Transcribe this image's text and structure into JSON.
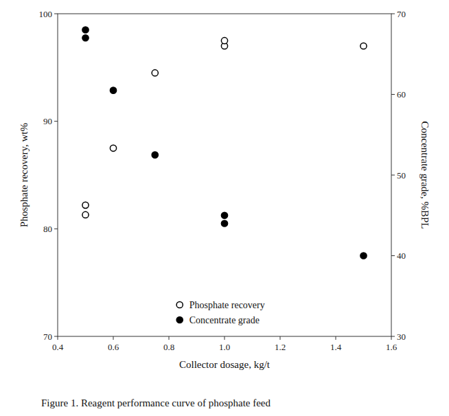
{
  "chart_data": {
    "type": "scatter",
    "caption": "Figure 1. Reagent performance curve of phosphate feed",
    "xlabel": "Collector dosage, kg/t",
    "ylabel": "Phosphate recovery, wt%",
    "y2label": "Concentrate grade, %BPL",
    "x": [
      0.5,
      0.5,
      0.6,
      0.75,
      1.0,
      1.0,
      1.5
    ],
    "series": [
      {
        "name": "Phosphate recovery",
        "color": "black",
        "marker": "open-circle",
        "values": [
          82.2,
          81.3,
          87.5,
          94.5,
          97.0,
          97.5,
          97.0
        ]
      },
      {
        "name": "Concentrate grade",
        "color": "black",
        "marker": "circle",
        "axis": "y2",
        "values": [
          68.0,
          67.0,
          60.5,
          52.5,
          45.0,
          44.0,
          40.0
        ]
      }
    ],
    "xlim": [
      0.4,
      1.6
    ],
    "xticks": [
      0.4,
      0.6,
      0.8,
      {
        "value": 1.0,
        "label": "1.0"
      },
      1.2,
      1.4,
      1.6
    ],
    "ylim": [
      70,
      100
    ],
    "yticks": [
      70,
      80,
      90,
      100
    ],
    "y2lim": [
      30,
      70
    ],
    "y2ticks": [
      30,
      40,
      50,
      60,
      70
    ],
    "grid": false,
    "legend": "bottom"
  }
}
